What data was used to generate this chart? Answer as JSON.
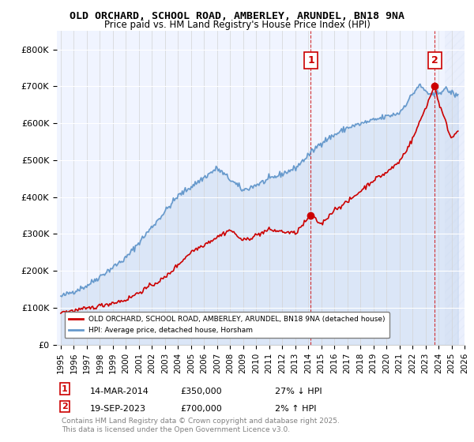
{
  "title": "OLD ORCHARD, SCHOOL ROAD, AMBERLEY, ARUNDEL, BN18 9NA",
  "subtitle": "Price paid vs. HM Land Registry's House Price Index (HPI)",
  "ylabel_ticks": [
    "£0",
    "£100K",
    "£200K",
    "£300K",
    "£400K",
    "£500K",
    "£600K",
    "£700K",
    "£800K"
  ],
  "ylim": [
    0,
    850000
  ],
  "xlim_start": 1995,
  "xlim_end": 2026,
  "red_line_color": "#cc0000",
  "blue_line_color": "#6699cc",
  "marker1_date_x": 2014.2,
  "marker1_y": 350000,
  "marker2_date_x": 2023.72,
  "marker2_y": 700000,
  "legend_label_red": "OLD ORCHARD, SCHOOL ROAD, AMBERLEY, ARUNDEL, BN18 9NA (detached house)",
  "legend_label_blue": "HPI: Average price, detached house, Horsham",
  "annotation1_label": "1",
  "annotation1_date": "14-MAR-2014",
  "annotation1_price": "£350,000",
  "annotation1_pct": "27% ↓ HPI",
  "annotation2_label": "2",
  "annotation2_date": "19-SEP-2023",
  "annotation2_price": "£700,000",
  "annotation2_pct": "2% ↑ HPI",
  "footer": "Contains HM Land Registry data © Crown copyright and database right 2025.\nThis data is licensed under the Open Government Licence v3.0.",
  "bg_color": "#f0f4ff",
  "hatch_color": "#c8d8f0"
}
